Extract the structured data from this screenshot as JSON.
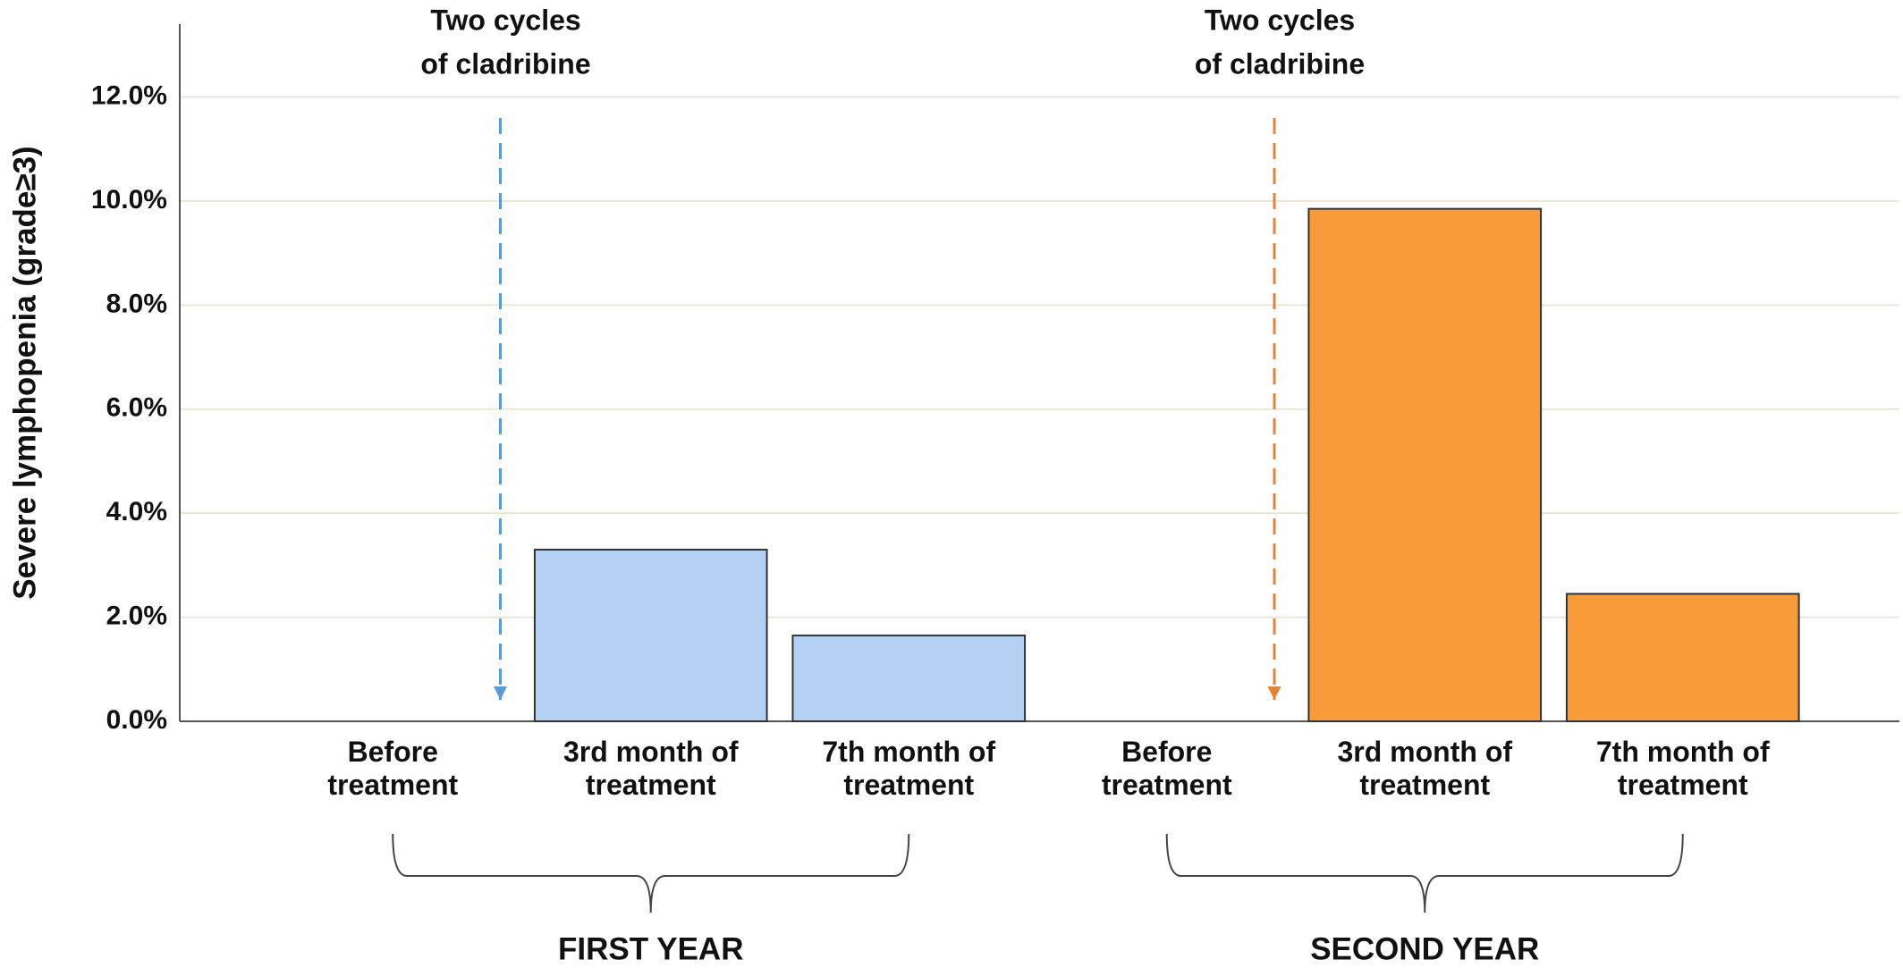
{
  "chart_data": {
    "type": "bar",
    "y_label": "Severe lymphopenia (grade≥3)",
    "categories": [
      "Before treatment",
      "3rd month of treatment",
      "7th month of treatment",
      "Before treatment",
      "3rd month of treatment",
      "7th month of treatment"
    ],
    "values": [
      0,
      3.3,
      1.65,
      0,
      9.85,
      2.45
    ],
    "colors": [
      "#b3cff2",
      "#b3cff2",
      "#b3cff2",
      "#f99b3a",
      "#f99b3a",
      "#f99b3a"
    ],
    "groups": [
      {
        "label": "FIRST YEAR",
        "annotation": [
          "Two cycles",
          "of cladribine"
        ],
        "color": "#5b9bd5"
      },
      {
        "label": "SECOND YEAR",
        "annotation": [
          "Two cycles",
          "of cladribine"
        ],
        "color": "#e0843e"
      }
    ],
    "ylim": [
      0,
      13.4
    ],
    "yticks": [
      {
        "value": 0,
        "label": "0.0%"
      },
      {
        "value": 2,
        "label": "2.0%"
      },
      {
        "value": 4,
        "label": "4.0%"
      },
      {
        "value": 6,
        "label": "6.0%"
      },
      {
        "value": 8,
        "label": "8.0%"
      },
      {
        "value": 10,
        "label": "10.0%"
      },
      {
        "value": 12,
        "label": "12.0%"
      }
    ],
    "grid": true
  }
}
